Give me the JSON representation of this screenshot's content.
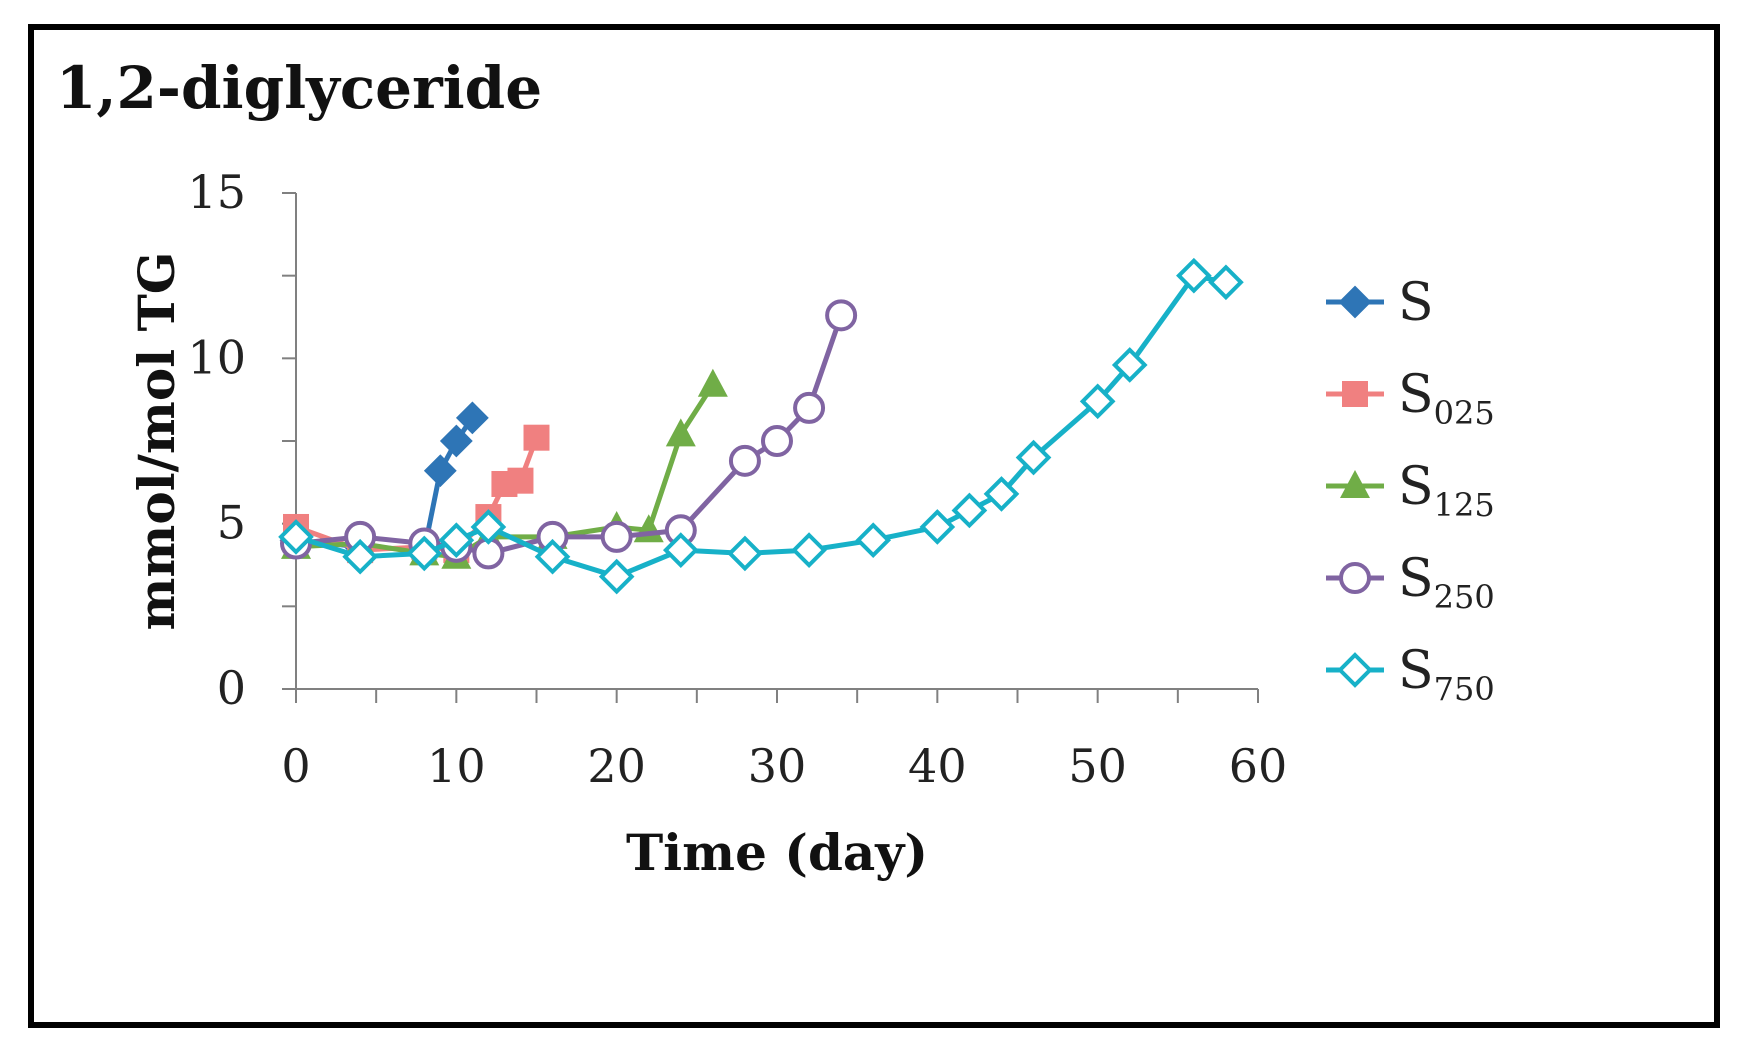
{
  "chart_data": {
    "type": "line",
    "title": "1,2-diglyceride",
    "xlabel": "Time (day)",
    "ylabel": "mmol/mol TG",
    "xlim": [
      0,
      60
    ],
    "ylim": [
      0,
      15
    ],
    "xticks": [
      0,
      10,
      20,
      30,
      40,
      50,
      60
    ],
    "yticks": [
      0,
      5,
      10,
      15
    ],
    "grid": false,
    "legend_position": "right",
    "series": [
      {
        "name": "S",
        "base": "S",
        "sub": "",
        "color": "#2E75B6",
        "marker": "diamond-filled",
        "x": [
          0,
          4,
          8,
          9,
          10,
          11
        ],
        "y": [
          4.5,
          4.3,
          4.2,
          6.6,
          7.5,
          8.2
        ]
      },
      {
        "name": "S025",
        "base": "S",
        "sub": "025",
        "color": "#F08080",
        "marker": "square-filled",
        "x": [
          0,
          4,
          8,
          10,
          12,
          13,
          14,
          15
        ],
        "y": [
          4.9,
          4.2,
          4.3,
          4.2,
          5.2,
          6.2,
          6.3,
          7.6
        ]
      },
      {
        "name": "S125",
        "base": "S",
        "sub": "125",
        "color": "#70AD47",
        "marker": "triangle-filled",
        "x": [
          0,
          4,
          8,
          10,
          12,
          16,
          20,
          22,
          24,
          26
        ],
        "y": [
          4.3,
          4.4,
          4.1,
          4.0,
          4.6,
          4.6,
          4.9,
          4.8,
          7.7,
          9.2
        ]
      },
      {
        "name": "S250",
        "base": "S",
        "sub": "250",
        "color": "#8064A2",
        "marker": "circle-open",
        "x": [
          0,
          4,
          8,
          10,
          12,
          16,
          20,
          24,
          28,
          30,
          32,
          34
        ],
        "y": [
          4.4,
          4.6,
          4.4,
          4.3,
          4.1,
          4.6,
          4.6,
          4.8,
          6.9,
          7.5,
          8.5,
          11.3
        ]
      },
      {
        "name": "S750",
        "base": "S",
        "sub": "750",
        "color": "#17B1C8",
        "marker": "diamond-open",
        "x": [
          0,
          4,
          8,
          10,
          12,
          16,
          20,
          24,
          28,
          32,
          36,
          40,
          42,
          44,
          46,
          50,
          52,
          56,
          58
        ],
        "y": [
          4.6,
          4.0,
          4.1,
          4.5,
          4.9,
          4.0,
          3.4,
          4.2,
          4.1,
          4.2,
          4.5,
          4.9,
          5.4,
          5.9,
          7.0,
          8.7,
          9.8,
          12.5,
          12.3
        ]
      }
    ]
  }
}
